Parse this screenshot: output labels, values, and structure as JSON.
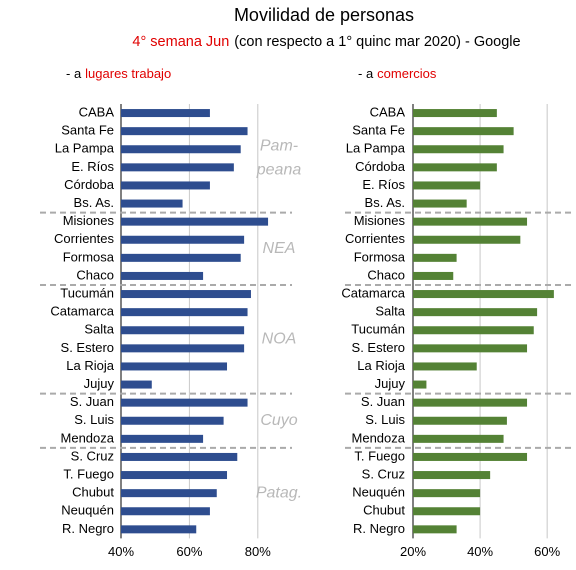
{
  "title": "Movilidad de personas",
  "subtitle": [
    "4° semana Jun",
    "(con respecto a  1° quinc mar 2020) - Google"
  ],
  "chart_data": [
    {
      "type": "bar",
      "orientation": "horizontal",
      "title": [
        "- a",
        "lugares trabajo"
      ],
      "color": "#2e4d8f",
      "xlim": [
        40,
        90
      ],
      "xticks": [
        {
          "value": 40,
          "label": "40%"
        },
        {
          "value": 60,
          "label": "60%"
        },
        {
          "value": 80,
          "label": "80%"
        }
      ],
      "grid": true,
      "groups": [
        {
          "label": [
            "Pam-",
            "peana"
          ],
          "categories": [
            "CABA",
            "Santa Fe",
            "La Pampa",
            "E. Ríos",
            "Córdoba",
            "Bs. As."
          ],
          "values": [
            66,
            77,
            75,
            73,
            66,
            58
          ]
        },
        {
          "label": [
            "NEA"
          ],
          "categories": [
            "Misiones",
            "Corrientes",
            "Formosa",
            "Chaco"
          ],
          "values": [
            83,
            76,
            75,
            64
          ]
        },
        {
          "label": [
            "NOA"
          ],
          "categories": [
            "Tucumán",
            "Catamarca",
            "Salta",
            "S. Estero",
            "La Rioja",
            "Jujuy"
          ],
          "values": [
            78,
            77,
            76,
            76,
            71,
            49
          ]
        },
        {
          "label": [
            "Cuyo"
          ],
          "categories": [
            "S. Juan",
            "S. Luis",
            "Mendoza"
          ],
          "values": [
            77,
            70,
            64
          ]
        },
        {
          "label": [
            "Patag."
          ],
          "categories": [
            "S. Cruz",
            "T. Fuego",
            "Chubut",
            "Neuquén",
            "R. Negro"
          ],
          "values": [
            74,
            71,
            68,
            66,
            62
          ]
        }
      ]
    },
    {
      "type": "bar",
      "orientation": "horizontal",
      "title": [
        "- a",
        "comercios"
      ],
      "color": "#548235",
      "xlim": [
        20,
        68
      ],
      "xticks": [
        {
          "value": 20,
          "label": "20%"
        },
        {
          "value": 40,
          "label": "40%"
        },
        {
          "value": 60,
          "label": "60%"
        }
      ],
      "grid": true,
      "groups": [
        {
          "categories": [
            "CABA",
            "Santa Fe",
            "La Pampa",
            "Córdoba",
            "E. Ríos",
            "Bs. As."
          ],
          "values": [
            45,
            50,
            47,
            45,
            40,
            36
          ]
        },
        {
          "categories": [
            "Misiones",
            "Corrientes",
            "Formosa",
            "Chaco"
          ],
          "values": [
            54,
            52,
            33,
            32
          ]
        },
        {
          "categories": [
            "Catamarca",
            "Salta",
            "Tucumán",
            "S. Estero",
            "La Rioja",
            "Jujuy"
          ],
          "values": [
            62,
            57,
            56,
            54,
            39,
            24
          ]
        },
        {
          "categories": [
            "S. Juan",
            "S. Luis",
            "Mendoza"
          ],
          "values": [
            54,
            48,
            47
          ]
        },
        {
          "categories": [
            "T. Fuego",
            "S. Cruz",
            "Neuquén",
            "Chubut",
            "R. Negro"
          ],
          "values": [
            54,
            43,
            40,
            40,
            33
          ]
        }
      ]
    }
  ]
}
